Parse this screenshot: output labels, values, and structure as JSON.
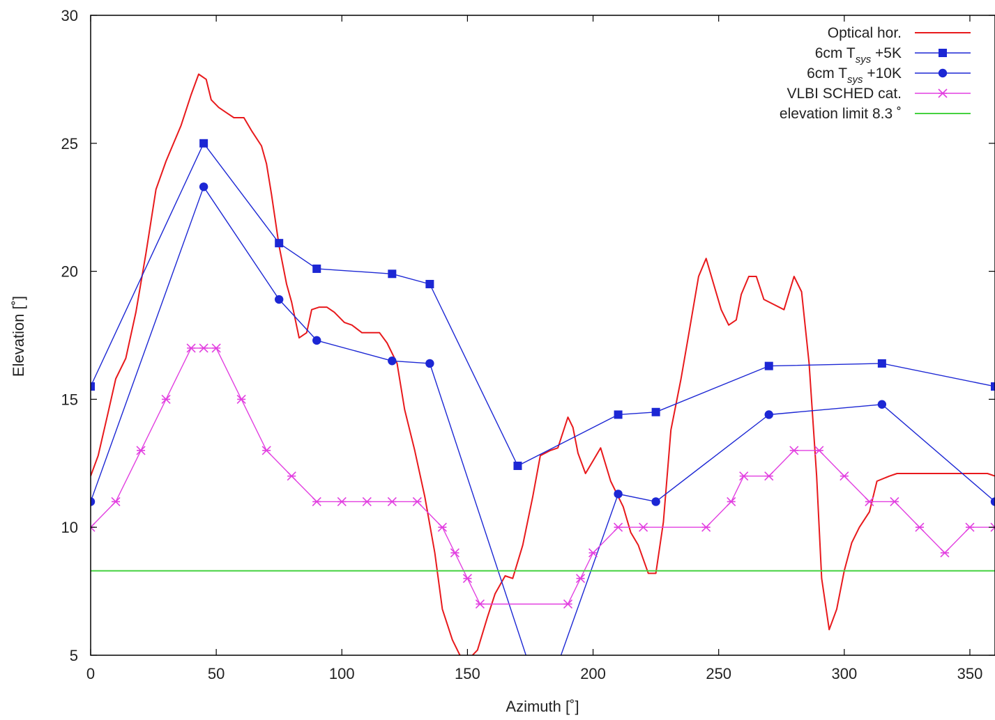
{
  "chart_data": {
    "type": "line",
    "xlabel": "Azimuth [˚]",
    "ylabel": "Elevation [˚]",
    "xlim": [
      0,
      360
    ],
    "ylim": [
      5,
      30
    ],
    "xticks": [
      0,
      50,
      100,
      150,
      200,
      250,
      300,
      350
    ],
    "yticks": [
      5,
      10,
      15,
      20,
      25,
      30
    ],
    "grid": false,
    "legend_position": "top-right",
    "legend": [
      {
        "series": "optical",
        "label_main": "Optical hor.",
        "label_sub": "",
        "label_tail": ""
      },
      {
        "series": "tsys5",
        "label_main": "6cm T",
        "label_sub": "sys",
        "label_tail": " +5K"
      },
      {
        "series": "tsys10",
        "label_main": "6cm T",
        "label_sub": "sys",
        "label_tail": " +10K"
      },
      {
        "series": "vlbi",
        "label_main": "VLBI SCHED cat.",
        "label_sub": "",
        "label_tail": ""
      },
      {
        "series": "elev",
        "label_main": "elevation limit 8.3 ˚",
        "label_sub": "",
        "label_tail": ""
      }
    ],
    "series": [
      {
        "id": "optical",
        "color": "#e8191c",
        "marker": "none",
        "x": [
          0,
          3,
          7,
          10,
          14,
          18,
          22,
          26,
          30,
          33,
          36,
          40,
          43,
          46,
          48,
          51,
          54,
          57,
          61,
          64,
          68,
          70,
          72,
          75,
          78,
          80,
          83,
          86,
          88,
          91,
          94,
          97,
          101,
          104,
          108,
          111,
          115,
          118,
          122,
          125,
          129,
          133,
          137,
          140,
          144,
          147,
          151,
          154,
          158,
          161,
          165,
          168,
          172,
          176,
          179,
          183,
          186,
          190,
          192,
          194,
          197,
          200,
          203,
          207,
          212,
          215,
          218,
          222,
          225,
          228,
          231,
          235,
          238,
          242,
          245,
          248,
          251,
          254,
          257,
          259,
          262,
          265,
          268,
          272,
          276,
          280,
          283,
          286,
          289,
          291,
          294,
          297,
          300,
          303,
          306,
          310,
          313,
          318,
          321,
          324,
          327,
          329,
          331,
          333,
          336,
          338,
          341,
          343,
          345,
          348,
          351,
          354,
          357,
          360
        ],
        "y": [
          12,
          12.8,
          14.5,
          15.8,
          16.6,
          18.4,
          20.7,
          23.2,
          24.3,
          25,
          25.7,
          26.9,
          27.7,
          27.5,
          26.7,
          26.4,
          26.2,
          26,
          26,
          25.5,
          24.9,
          24.2,
          23,
          21,
          19.5,
          18.8,
          17.4,
          17.6,
          18.5,
          18.6,
          18.6,
          18.4,
          18,
          17.9,
          17.6,
          17.6,
          17.6,
          17.2,
          16.4,
          14.6,
          13,
          11.2,
          9,
          6.8,
          5.6,
          5,
          4.9,
          5.2,
          6.5,
          7.4,
          8.1,
          8,
          9.3,
          11.2,
          12.8,
          13,
          13.1,
          14.3,
          13.9,
          12.9,
          12.1,
          12.6,
          13.1,
          11.8,
          10.8,
          9.8,
          9.3,
          8.2,
          8.2,
          10.2,
          13.8,
          15.8,
          17.5,
          19.8,
          20.5,
          19.5,
          18.5,
          17.9,
          18.1,
          19.1,
          19.8,
          19.8,
          18.9,
          18.7,
          18.5,
          19.8,
          19.2,
          16.4,
          12,
          8,
          6,
          6.8,
          8.3,
          9.4,
          10,
          10.6,
          11.8,
          12,
          12.1,
          12.1,
          12.1,
          12.1,
          12.1,
          12.1,
          12.1,
          12.1,
          12.1,
          12.1,
          12.1,
          12.1,
          12.1,
          12.1,
          12.1,
          12
        ]
      },
      {
        "id": "tsys5",
        "color": "#1c27d4",
        "marker": "square",
        "x": [
          0,
          45,
          75,
          90,
          120,
          135,
          170,
          210,
          225,
          270,
          315,
          360
        ],
        "y": [
          15.5,
          25,
          21.1,
          20.1,
          19.9,
          19.5,
          12.4,
          14.4,
          14.5,
          16.3,
          16.4,
          15.5
        ]
      },
      {
        "id": "tsys10",
        "color": "#1c27d4",
        "marker": "circle",
        "x": [
          0,
          45,
          75,
          90,
          120,
          135,
          180,
          210,
          225,
          270,
          315,
          360
        ],
        "y": [
          11,
          23.3,
          18.9,
          17.3,
          16.5,
          16.4,
          3,
          11.3,
          11,
          14.4,
          14.8,
          11
        ]
      },
      {
        "id": "vlbi",
        "color": "#e23fe0",
        "marker": "asterisk",
        "x": [
          0,
          10,
          20,
          30,
          40,
          45,
          50,
          60,
          70,
          80,
          90,
          100,
          110,
          120,
          130,
          140,
          145,
          150,
          155,
          190,
          195,
          200,
          210,
          220,
          245,
          255,
          260,
          270,
          280,
          290,
          300,
          310,
          320,
          330,
          340,
          350,
          360
        ],
        "y": [
          10,
          11,
          13,
          15,
          17,
          17,
          17,
          15,
          13,
          12,
          11,
          11,
          11,
          11,
          11,
          10,
          9,
          8,
          7,
          7,
          8,
          9,
          10,
          10,
          10,
          11,
          12,
          12,
          13,
          13,
          12,
          11,
          11,
          10,
          9,
          10,
          10
        ]
      },
      {
        "id": "elev",
        "color": "#45d240",
        "marker": "none",
        "x": [
          0,
          360
        ],
        "y": [
          8.3,
          8.3
        ]
      }
    ]
  }
}
